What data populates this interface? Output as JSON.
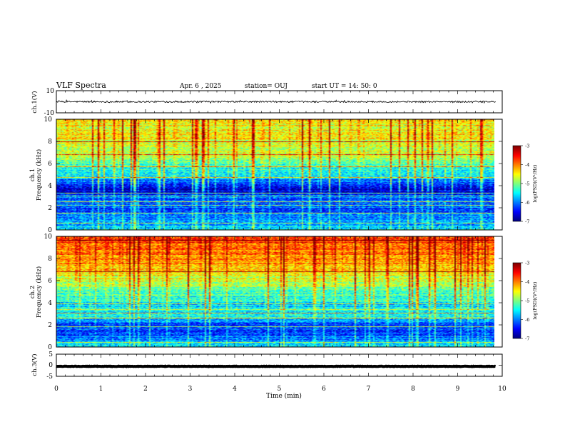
{
  "header": {
    "title": "VLF Spectra",
    "date": "Apr. 6 , 2025",
    "station": "station= OUJ",
    "start": "start  UT =   14: 50: 0"
  },
  "chart_data": [
    {
      "type": "line",
      "panel": "ch1-waveform",
      "ylabel": "ch.1(V)",
      "ylim": [
        -10,
        10
      ],
      "yticks": [
        "10",
        "-10"
      ],
      "x_range": [
        0,
        9.85
      ],
      "baseline": 0,
      "noise_amplitude": 0.7
    },
    {
      "type": "heatmap",
      "panel": "ch1-spectrogram",
      "ylabel_line1": "ch.1",
      "ylabel_line2": "Frequency (kHz)",
      "ylim": [
        0,
        10
      ],
      "yticks": [
        "0",
        "2",
        "4",
        "6",
        "8",
        "10"
      ],
      "x_range": [
        0,
        9.85
      ],
      "colorbar": {
        "label": "log(PSD)(V²/Hz)",
        "range": [
          -7,
          -3
        ],
        "ticks": [
          "-3",
          "-4",
          "-5",
          "-6",
          "-7"
        ]
      },
      "profile_kHz": [
        [
          0,
          -5.6
        ],
        [
          1,
          -6.0
        ],
        [
          2,
          -6.2
        ],
        [
          3,
          -6.1
        ],
        [
          3.5,
          -6.7
        ],
        [
          4,
          -6.6
        ],
        [
          4.8,
          -5.7
        ],
        [
          5.5,
          -5.5
        ],
        [
          6.5,
          -4.9
        ],
        [
          8,
          -4.6
        ],
        [
          9,
          -4.55
        ],
        [
          10,
          -4.5
        ]
      ],
      "tones_kHz": [
        0.6,
        1.5,
        2.2,
        2.55,
        3.05,
        3.3,
        4.75,
        5.7,
        6.8,
        8.0
      ]
    },
    {
      "type": "heatmap",
      "panel": "ch2-spectrogram",
      "ylabel_line1": "ch.2",
      "ylabel_line2": "Frequency (kHz)",
      "ylim": [
        0,
        10
      ],
      "yticks": [
        "0",
        "2",
        "4",
        "6",
        "8",
        "10"
      ],
      "x_range": [
        0,
        9.85
      ],
      "colorbar": {
        "label": "log(PSD)(V²/Hz)",
        "range": [
          -7,
          -3
        ],
        "ticks": [
          "-3",
          "-4",
          "-5",
          "-6",
          "-7"
        ]
      },
      "profile_kHz": [
        [
          0,
          -5.6
        ],
        [
          1,
          -6.1
        ],
        [
          2,
          -6.3
        ],
        [
          2.8,
          -5.4
        ],
        [
          3.5,
          -5.7
        ],
        [
          4.5,
          -5.4
        ],
        [
          6,
          -4.7
        ],
        [
          7.5,
          -4.2
        ],
        [
          9,
          -3.9
        ],
        [
          10,
          -3.8
        ]
      ],
      "tones_kHz": [
        0.4,
        1.8,
        2.6,
        3.05,
        3.4,
        3.9,
        6.8,
        9.7
      ]
    },
    {
      "type": "line",
      "panel": "ch3-waveform",
      "ylabel": "ch.3(V)",
      "ylim": [
        -5,
        5
      ],
      "yticks": [
        "5",
        "0",
        "-5"
      ],
      "x_range": [
        0,
        9.85
      ],
      "baseline": -0.5,
      "noise_amplitude": 0.1
    }
  ],
  "x_axis": {
    "label": "Time (min)",
    "range": [
      0,
      10
    ],
    "ticks": [
      "0",
      "1",
      "2",
      "3",
      "4",
      "5",
      "6",
      "7",
      "8",
      "9",
      "10"
    ]
  }
}
